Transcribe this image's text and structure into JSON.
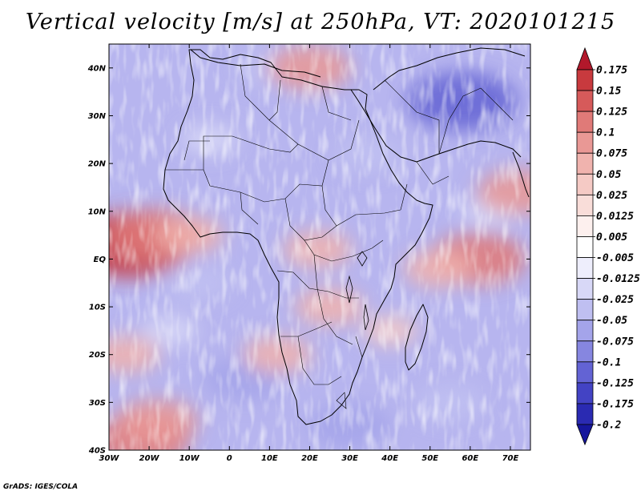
{
  "chart_data": {
    "type": "heatmap",
    "title": "Vertical velocity [m/s] at 250hPa, VT: 2020101215",
    "variable": "Vertical velocity",
    "units": "m/s",
    "level": "250hPa",
    "valid_time": "2020101215",
    "x_axis": {
      "ticks": [
        "30W",
        "20W",
        "10W",
        "0",
        "10E",
        "20E",
        "30E",
        "40E",
        "50E",
        "60E",
        "70E"
      ],
      "values": [
        -30,
        -20,
        -10,
        0,
        10,
        20,
        30,
        40,
        50,
        60,
        70
      ],
      "range": [
        -30,
        75
      ]
    },
    "y_axis": {
      "ticks": [
        "40S",
        "30S",
        "20S",
        "10S",
        "EQ",
        "10N",
        "20N",
        "30N",
        "40N"
      ],
      "values": [
        -40,
        -30,
        -20,
        -10,
        0,
        10,
        20,
        30,
        40
      ],
      "range": [
        -40,
        45
      ]
    },
    "colorbar": {
      "levels": [
        "0.175",
        "0.15",
        "0.125",
        "0.1",
        "0.075",
        "0.05",
        "0.025",
        "0.0125",
        "0.005",
        "-0.005",
        "-0.0125",
        "-0.025",
        "-0.05",
        "-0.075",
        "-0.1",
        "-0.125",
        "-0.175",
        "-0.2"
      ],
      "colors": [
        "#b2182b",
        "#c83a3e",
        "#d65a5a",
        "#e07a78",
        "#e99895",
        "#f0b3ae",
        "#f5cac5",
        "#f9ddd9",
        "#fdf0ee",
        "#ffffff",
        "#eeeefc",
        "#d8d8f7",
        "#bfbff1",
        "#a4a4ea",
        "#8686e0",
        "#6363d4",
        "#4343c4",
        "#2a2ab2",
        "#16169c"
      ]
    },
    "regions": {
      "positive": [
        {
          "lon": -25,
          "lat": 3,
          "value": 0.15
        },
        {
          "lon": -18,
          "lat": 5,
          "value": 0.1
        },
        {
          "lon": -10,
          "lat": 5,
          "value": 0.05
        },
        {
          "lon": 62,
          "lat": 0,
          "value": 0.1
        },
        {
          "lon": 52,
          "lat": -2,
          "value": 0.05
        },
        {
          "lon": 25,
          "lat": -10,
          "value": 0.05
        },
        {
          "lon": 22,
          "lat": 2,
          "value": 0.05
        },
        {
          "lon": 20,
          "lat": 40,
          "value": 0.075
        },
        {
          "lon": -22,
          "lat": -38,
          "value": 0.1
        },
        {
          "lon": -18,
          "lat": -34,
          "value": 0.075
        },
        {
          "lon": 72,
          "lat": 14,
          "value": 0.075
        },
        {
          "lon": -26,
          "lat": -20,
          "value": 0.05
        },
        {
          "lon": 12,
          "lat": -20,
          "value": 0.05
        },
        {
          "lon": 40,
          "lat": -15,
          "value": 0.025
        }
      ],
      "negative": [
        {
          "lon": 58,
          "lat": 33,
          "value": -0.125
        },
        {
          "lon": 4,
          "lat": -25,
          "value": -0.075
        },
        {
          "lon": -8,
          "lat": -5,
          "value": -0.05
        },
        {
          "lon": 30,
          "lat": -35,
          "value": -0.075
        },
        {
          "lon": 55,
          "lat": -30,
          "value": -0.05
        },
        {
          "lon": 35,
          "lat": 22,
          "value": -0.05
        },
        {
          "lon": -5,
          "lat": 25,
          "value": -0.025
        },
        {
          "lon": 10,
          "lat": 40,
          "value": -0.05
        },
        {
          "lon": 65,
          "lat": 10,
          "value": -0.025
        },
        {
          "lon": -15,
          "lat": -15,
          "value": -0.025
        }
      ]
    }
  },
  "footer": {
    "credit": "GrADS: IGES/COLA"
  }
}
